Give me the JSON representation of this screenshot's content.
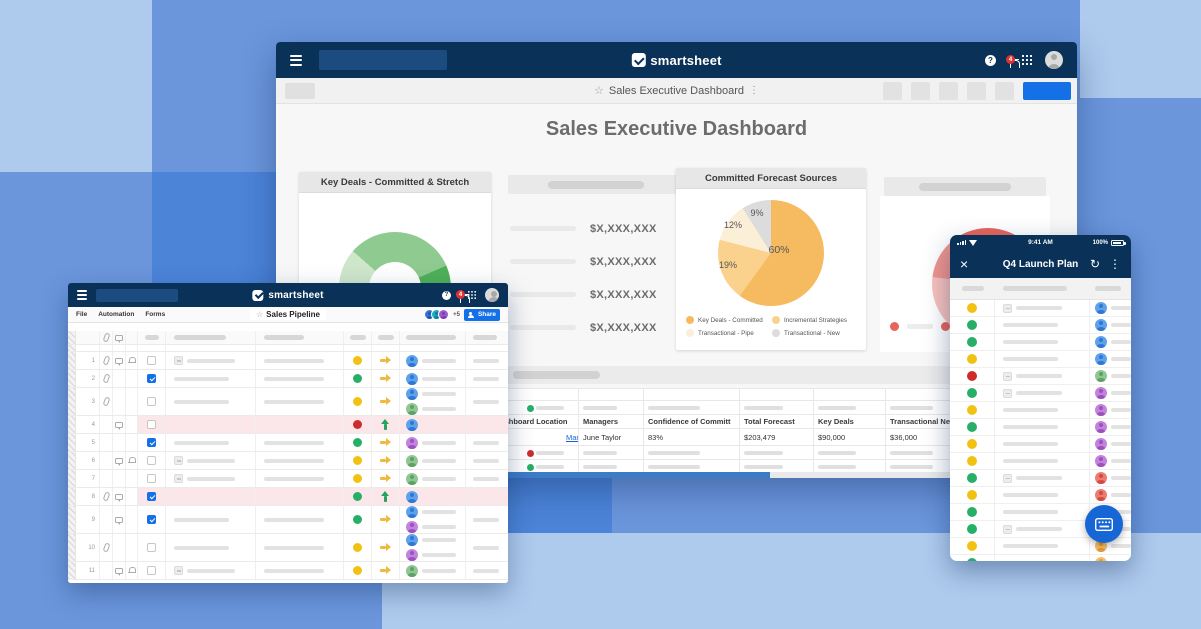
{
  "brand": {
    "logo_text": "smartsheet",
    "notification_count": "4"
  },
  "colors": {
    "navy": "#0A3157",
    "accent_blue": "#1470E6",
    "ball": {
      "yellow": "#F2C212",
      "green": "#26AF67",
      "red": "#CE2C2C"
    },
    "arrow": {
      "yellow": "#EFB93F",
      "green": "#27A25B"
    },
    "avatar": {
      "blue": {
        "bg": "#5FA2EC",
        "fg": "#2F77D1"
      },
      "green": {
        "bg": "#8FC693",
        "fg": "#5FA064"
      },
      "purple": {
        "bg": "#C183DC",
        "fg": "#9C51BE"
      },
      "red": {
        "bg": "#EC7B72",
        "fg": "#D34A42"
      },
      "orange": {
        "bg": "#F7BF69",
        "fg": "#E89B2D"
      }
    },
    "chips": [
      {
        "bg": "#3575D4",
        "fg": "#1D57B0"
      },
      {
        "bg": "#21A6C4",
        "fg": "#0F7E97"
      },
      {
        "bg": "#9A5BD0",
        "fg": "#7A3DB0"
      }
    ]
  },
  "main_window": {
    "toolbar_title": "Sales Executive Dashboard",
    "page_title": "Sales Executive Dashboard",
    "metrics": [
      "$X,XXX,XXX",
      "$X,XXX,XXX",
      "$X,XXX,XXX",
      "$X,XXX,XXX"
    ],
    "table": {
      "headers": [
        "Dashboard Location",
        "Managers",
        "Confidence of Committ",
        "Total Forecast",
        "Key Deals",
        "Transactional New"
      ],
      "row": {
        "location": "Manager Dashboard",
        "manager": "June Taylor",
        "confidence": "83%",
        "total_forecast": "$203,479",
        "key_deals": "$90,000",
        "transactional_new": "$36,000"
      },
      "placeholder_dots": [
        "green",
        "red",
        "green",
        "green"
      ]
    }
  },
  "chart_data": [
    {
      "type": "pie",
      "title": "Key Deals - Committed & Stretch",
      "style": "donut",
      "note": "unlabeled donut, bottom portion occluded; segment shares estimated",
      "series": [
        {
          "name": "segment-light",
          "value": 17,
          "color": "#CEE7CB"
        },
        {
          "name": "segment-mid",
          "value": 32,
          "color": "#8FCA90"
        },
        {
          "name": "segment-dark",
          "value": 14,
          "color": "#4FB159"
        },
        {
          "name": "remainder",
          "value": 37,
          "color": "#EFEFEF"
        }
      ],
      "rotation_deg": 250
    },
    {
      "type": "pie",
      "title": "Committed Forecast Sources",
      "slices": [
        {
          "label": "Key Deals - Committed",
          "pct": 60,
          "color": "#F6BB60"
        },
        {
          "label": "Incremental Strategies",
          "pct": 19,
          "color": "#FAD28E"
        },
        {
          "label": "Transactional - Pipe",
          "pct": 12,
          "color": "#FCEFD8"
        },
        {
          "label": "Transactional - New",
          "pct": 9,
          "color": "#DCDCDC"
        }
      ],
      "legend_position": "bottom"
    },
    {
      "type": "pie",
      "title": "",
      "style": "donut",
      "note": "unlabeled red/pink donut, partly occluded by phone; shares estimated",
      "series": [
        {
          "name": "segment-dark",
          "value": 8,
          "color": "#E9655C"
        },
        {
          "name": "segment-light",
          "value": 69,
          "color": "#F7C1BD"
        },
        {
          "name": "segment-mid",
          "value": 15,
          "color": "#F0958E"
        },
        {
          "name": "segment-dark-2",
          "value": 8,
          "color": "#E9655C"
        }
      ],
      "rotation_deg": 0
    }
  ],
  "sheet_window": {
    "menus": [
      "File",
      "Automation",
      "Forms"
    ],
    "title": "Sales Pipeline",
    "collaborators_more": "+5",
    "share_label": "Share",
    "rows": [
      {
        "n": "1",
        "icons": [
          "clip",
          "comment",
          "bell"
        ],
        "checked": false,
        "hl": false,
        "t1": "box",
        "t2": true,
        "ball": "yellow",
        "arrow": "right-yellow",
        "avatars": [
          "blue"
        ],
        "last": true
      },
      {
        "n": "2",
        "icons": [
          "clip"
        ],
        "checked": true,
        "hl": false,
        "t1": "line",
        "t2": true,
        "ball": "green",
        "arrow": "right-yellow",
        "avatars": [
          "blue"
        ],
        "last": true
      },
      {
        "n": "3",
        "icons": [
          "clip"
        ],
        "checked": false,
        "hl": false,
        "t1": "line",
        "t2": true,
        "ball": "yellow",
        "arrow": "right-yellow",
        "avatars": [
          "blue",
          "green"
        ],
        "last": true
      },
      {
        "n": "4",
        "icons": [
          "comment"
        ],
        "checked": false,
        "hl": true,
        "t1": null,
        "t2": false,
        "ball": "red",
        "arrow": "up-green",
        "avatars": [
          "blue"
        ],
        "last": false
      },
      {
        "n": "5",
        "icons": [],
        "checked": true,
        "hl": false,
        "t1": "line",
        "t2": true,
        "ball": "green",
        "arrow": "right-yellow",
        "avatars": [
          "purple"
        ],
        "last": true
      },
      {
        "n": "6",
        "icons": [
          "comment",
          "bell"
        ],
        "checked": false,
        "hl": false,
        "t1": "box",
        "t2": true,
        "ball": "yellow",
        "arrow": "right-yellow",
        "avatars": [
          "green"
        ],
        "last": true
      },
      {
        "n": "7",
        "icons": [],
        "checked": false,
        "hl": false,
        "t1": "box",
        "t2": true,
        "ball": "yellow",
        "arrow": "right-yellow",
        "avatars": [
          "green"
        ],
        "last": true
      },
      {
        "n": "8",
        "icons": [
          "clip",
          "comment"
        ],
        "checked": true,
        "hl": true,
        "t1": null,
        "t2": false,
        "ball": "green",
        "arrow": "up-green",
        "avatars": [
          "blue"
        ],
        "last": false
      },
      {
        "n": "9",
        "icons": [
          "comment"
        ],
        "checked": true,
        "hl": false,
        "t1": "line",
        "t2": true,
        "ball": "green",
        "arrow": "right-yellow",
        "avatars": [
          "blue",
          "purple"
        ],
        "last": true
      },
      {
        "n": "10",
        "icons": [
          "clip"
        ],
        "checked": false,
        "hl": false,
        "t1": "line",
        "t2": true,
        "ball": "yellow",
        "arrow": "right-yellow",
        "avatars": [
          "blue",
          "purple"
        ],
        "last": true
      },
      {
        "n": "11",
        "icons": [
          "comment",
          "bell"
        ],
        "checked": false,
        "hl": false,
        "t1": "box",
        "t2": true,
        "ball": "yellow",
        "arrow": "right-yellow",
        "avatars": [
          "green"
        ],
        "last": true
      }
    ]
  },
  "phone": {
    "time": "9:41 AM",
    "battery": "100%",
    "title": "Q4 Launch Plan",
    "rows": [
      {
        "ball": "yellow",
        "box": true,
        "av": "blue"
      },
      {
        "ball": "green",
        "box": false,
        "av": "blue"
      },
      {
        "ball": "green",
        "box": false,
        "av": "blue"
      },
      {
        "ball": "yellow",
        "box": false,
        "av": "blue"
      },
      {
        "ball": "red",
        "box": true,
        "av": "green"
      },
      {
        "ball": "green",
        "box": true,
        "av": "purple"
      },
      {
        "ball": "yellow",
        "box": false,
        "av": "purple"
      },
      {
        "ball": "green",
        "box": false,
        "av": "purple"
      },
      {
        "ball": "yellow",
        "box": false,
        "av": "purple"
      },
      {
        "ball": "yellow",
        "box": false,
        "av": "purple"
      },
      {
        "ball": "green",
        "box": true,
        "av": "red"
      },
      {
        "ball": "yellow",
        "box": false,
        "av": "red"
      },
      {
        "ball": "green",
        "box": false,
        "av": "red"
      },
      {
        "ball": "green",
        "box": true,
        "av": "orange"
      },
      {
        "ball": "yellow",
        "box": false,
        "av": "orange"
      },
      {
        "ball": "green",
        "box": false,
        "av": "orange"
      }
    ]
  }
}
